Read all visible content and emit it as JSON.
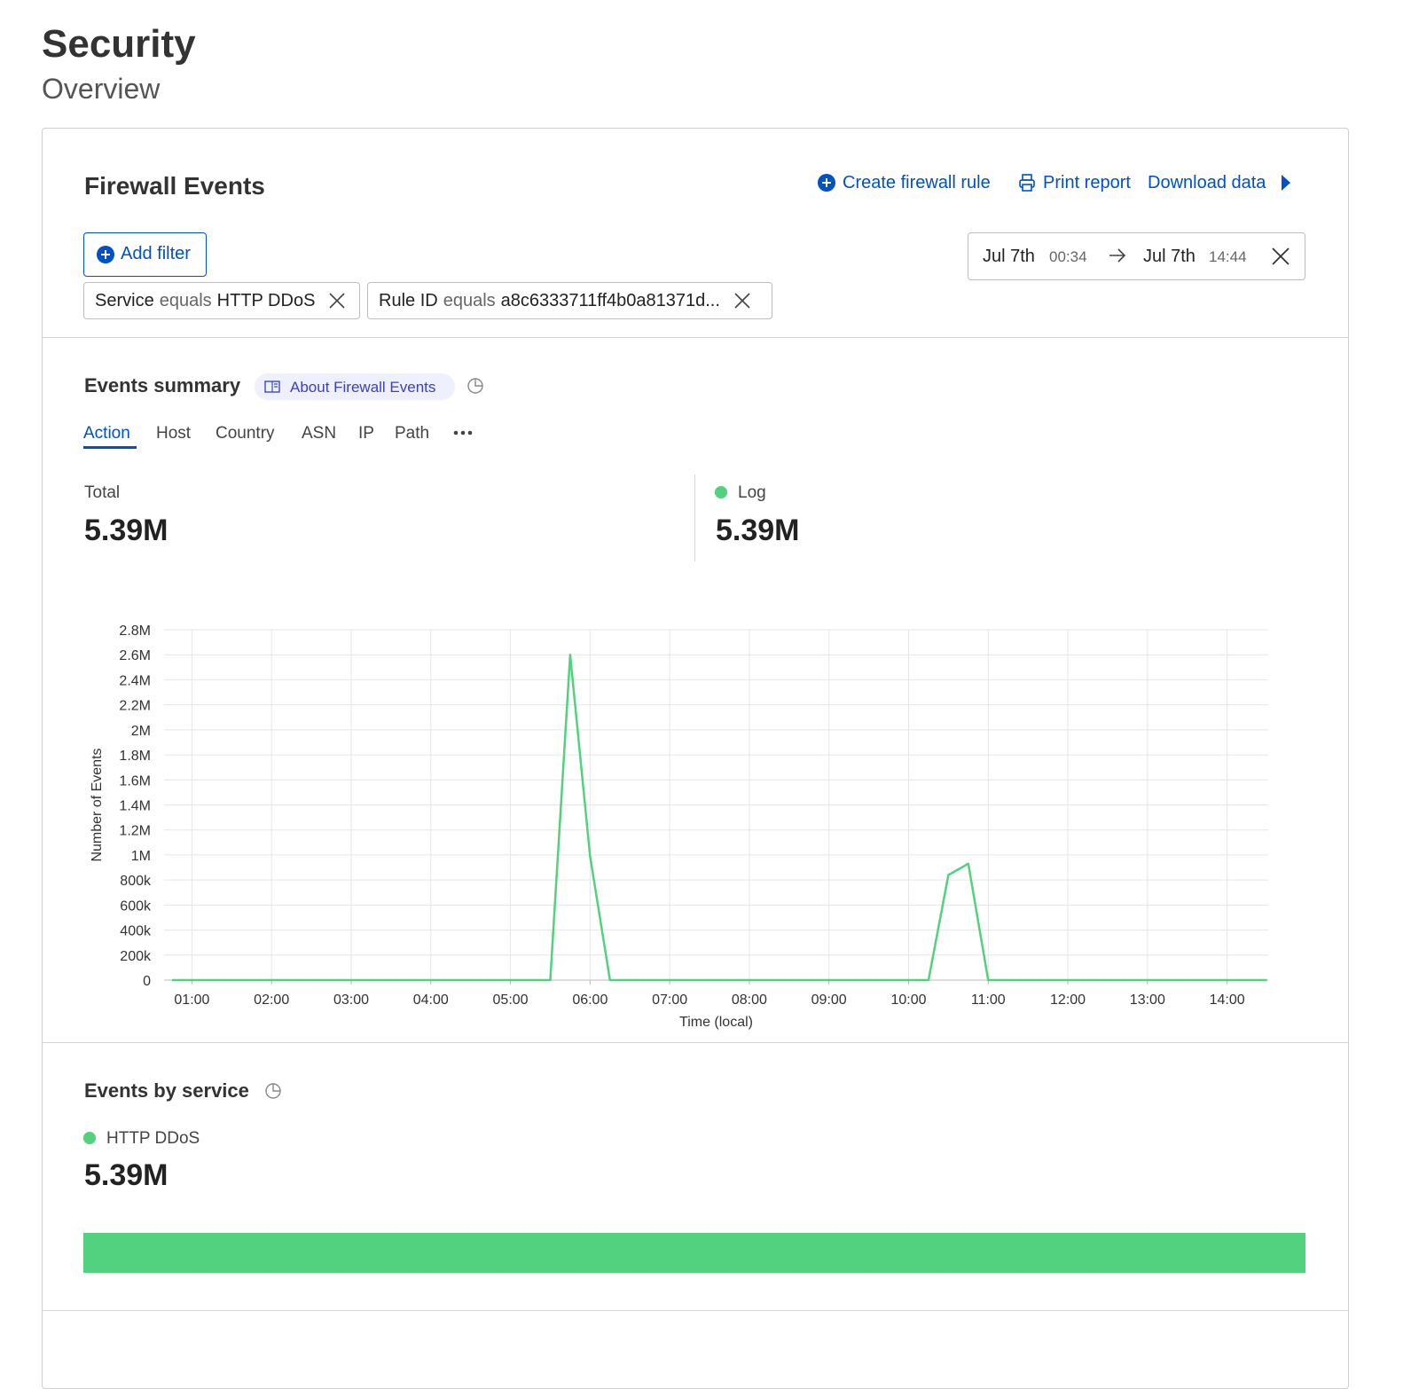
{
  "header": {
    "title": "Security",
    "subtitle": "Overview"
  },
  "card": {
    "title": "Firewall Events",
    "actions": [
      "Create firewall rule",
      "Print report",
      "Download data"
    ],
    "add_filter": "Add filter",
    "filters": [
      {
        "field": "Service",
        "op": "equals",
        "value": "HTTP DDoS"
      },
      {
        "field": "Rule ID",
        "op": "equals",
        "value": "a8c6333711ff4b0a81371d..."
      }
    ],
    "date_range": {
      "from_date": "Jul 7th",
      "from_time": "00:34",
      "to_date": "Jul 7th",
      "to_time": "14:44"
    }
  },
  "summary": {
    "title": "Events summary",
    "badge": "About Firewall Events",
    "tabs": [
      "Action",
      "Host",
      "Country",
      "ASN",
      "IP",
      "Path"
    ],
    "total": {
      "label": "Total",
      "value": "5.39M"
    }
  },
  "chart_data": {
    "type": "line",
    "x_label": "Time (local)",
    "y_label": "Number of Events",
    "x": [
      "00:45",
      "05:30",
      "05:45",
      "06:00",
      "06:15",
      "10:15",
      "10:30",
      "10:45",
      "11:00",
      "14:30"
    ],
    "series": [
      {
        "name": "Log",
        "total": "5.39M",
        "color": "#52d17f",
        "values": [
          0,
          0,
          2600000,
          990000,
          0,
          0,
          840000,
          930000,
          0,
          0
        ]
      }
    ],
    "xlim": [
      "00:39",
      "14:31"
    ],
    "xticks": [
      "01:00",
      "02:00",
      "03:00",
      "04:00",
      "05:00",
      "06:00",
      "07:00",
      "08:00",
      "09:00",
      "10:00",
      "11:00",
      "12:00",
      "13:00",
      "14:00"
    ],
    "ylim": [
      0,
      2800000
    ],
    "yticks": [
      0,
      {
        "value": 200000,
        "label": "200k"
      },
      {
        "value": 400000,
        "label": "400k"
      },
      {
        "value": 600000,
        "label": "600k"
      },
      {
        "value": 800000,
        "label": "800k"
      },
      {
        "value": 1000000,
        "label": "1M"
      },
      {
        "value": 1200000,
        "label": "1.2M"
      },
      {
        "value": 1400000,
        "label": "1.4M"
      },
      {
        "value": 1600000,
        "label": "1.6M"
      },
      {
        "value": 1800000,
        "label": "1.8M"
      },
      {
        "value": 2000000,
        "label": "2M"
      },
      {
        "value": 2200000,
        "label": "2.2M"
      },
      {
        "value": 2400000,
        "label": "2.4M"
      },
      {
        "value": 2600000,
        "label": "2.6M"
      },
      {
        "value": 2800000,
        "label": "2.8M"
      }
    ],
    "grid": true
  },
  "by_service": {
    "title": "Events by service",
    "items": [
      {
        "name": "HTTP DDoS",
        "value": 5390000,
        "value_label": "5.39M",
        "color": "#52d17f"
      }
    ]
  }
}
